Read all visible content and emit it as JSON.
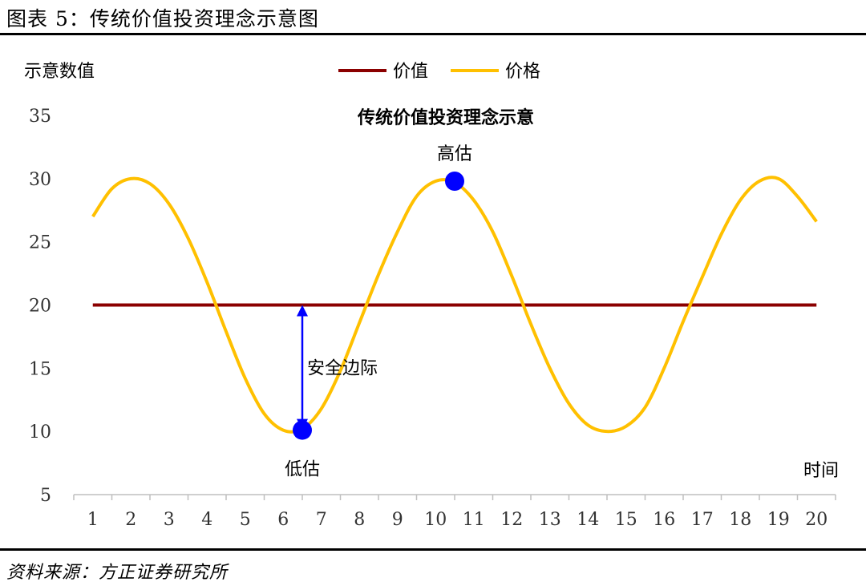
{
  "figure": {
    "title": "图表 5：传统价值投资理念示意图",
    "source": "资料来源：方正证券研究所"
  },
  "colors": {
    "value": "#8B0000",
    "price": "#FFC000",
    "marker": "#0000FF",
    "axis": "#BFBFBF"
  },
  "chart_data": {
    "type": "line",
    "title": "传统价值投资理念示意",
    "ylabel": "示意数值",
    "xlabel": "时间",
    "ylim": [
      5,
      35
    ],
    "yticks": [
      5,
      10,
      15,
      20,
      25,
      30,
      35
    ],
    "categories": [
      "1",
      "2",
      "3",
      "4",
      "5",
      "6",
      "7",
      "8",
      "9",
      "10",
      "11",
      "12",
      "13",
      "14",
      "15",
      "16",
      "17",
      "18",
      "19",
      "20"
    ],
    "legend_position": "top",
    "series": [
      {
        "name": "价值",
        "color": "#8B0000",
        "x": [
          1,
          20
        ],
        "y": [
          20,
          20
        ]
      },
      {
        "name": "价格",
        "color": "#FFC000",
        "x": [
          1.0,
          1.5,
          2.0,
          2.5,
          3.0,
          3.5,
          4.0,
          4.5,
          5.0,
          5.5,
          6.0,
          6.5,
          7.0,
          7.5,
          8.0,
          8.5,
          9.0,
          9.5,
          10.0,
          10.5,
          11.0,
          11.5,
          12.0,
          12.5,
          13.0,
          13.5,
          14.0,
          14.5,
          15.0,
          15.5,
          16.0,
          16.5,
          17.0,
          17.5,
          18.0,
          18.5,
          19.0,
          19.5,
          20.0
        ],
        "y": [
          27.0,
          29.2,
          30.0,
          29.6,
          28.0,
          25.3,
          21.8,
          17.9,
          14.2,
          11.4,
          10.1,
          10.2,
          11.8,
          14.8,
          18.6,
          22.4,
          25.8,
          28.6,
          29.8,
          29.7,
          28.3,
          25.8,
          22.3,
          18.5,
          15.0,
          12.2,
          10.5,
          10.0,
          10.4,
          11.9,
          15.0,
          18.7,
          22.2,
          25.6,
          28.3,
          29.8,
          30.0,
          28.6,
          26.6
        ]
      }
    ],
    "annotations": [
      {
        "label": "高估",
        "x": 10.5,
        "y": 29.8
      },
      {
        "label": "低估",
        "x": 6.5,
        "y": 10.1
      },
      {
        "label": "安全边际",
        "x": 6.5,
        "y_from": 20,
        "y_to": 10.1
      }
    ]
  }
}
